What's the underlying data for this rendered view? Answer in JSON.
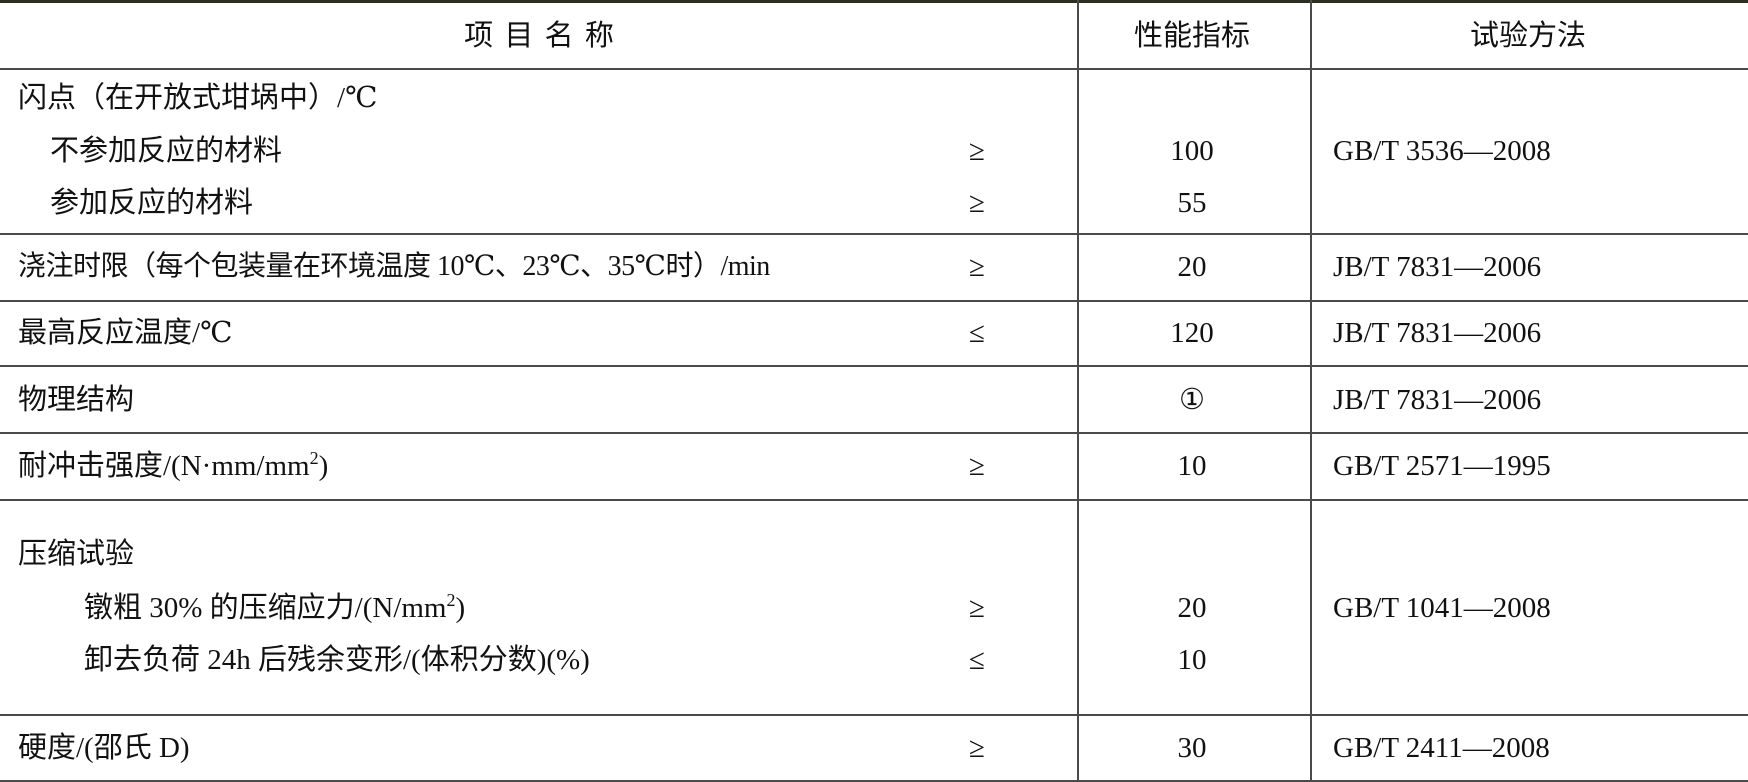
{
  "header": {
    "name": "项 目 名 称",
    "value": "性能指标",
    "method": "试验方法"
  },
  "rows": [
    {
      "name": "闪点（在开放式坩埚中）/℃",
      "sub": [
        {
          "name": "不参加反应的材料",
          "sign": "≥",
          "value": "100"
        },
        {
          "name": "参加反应的材料",
          "sign": "≥",
          "value": "55"
        }
      ],
      "method": "GB/T 3536—2008"
    },
    {
      "name": "浇注时限（每个包装量在环境温度 10℃、23℃、35℃时）/min",
      "sign": "≥",
      "value": "20",
      "method": "JB/T 7831—2006"
    },
    {
      "name": "最高反应温度/℃",
      "sign": "≤",
      "value": "120",
      "method": "JB/T 7831—2006"
    },
    {
      "name": "物理结构",
      "sign": "",
      "value": "①",
      "method": "JB/T 7831—2006"
    },
    {
      "name": "耐冲击强度/(N·mm/mm",
      "sup": "2",
      "name_end": ")",
      "sign": "≥",
      "value": "10",
      "method": "GB/T 2571—1995"
    },
    {
      "name": "压缩试验",
      "sub": [
        {
          "name": "镦粗 30% 的压缩应力/(N/mm",
          "sup": "2",
          "name_end": ")",
          "sign": "≥",
          "value": "20"
        },
        {
          "name": "卸去负荷 24h 后残余变形/(体积分数)(%)",
          "sign": "≤",
          "value": "10"
        }
      ],
      "method": "GB/T 1041—2008"
    },
    {
      "name": "硬度/(邵氏 D)",
      "sign": "≥",
      "value": "30",
      "method": "GB/T 2411—2008"
    }
  ]
}
